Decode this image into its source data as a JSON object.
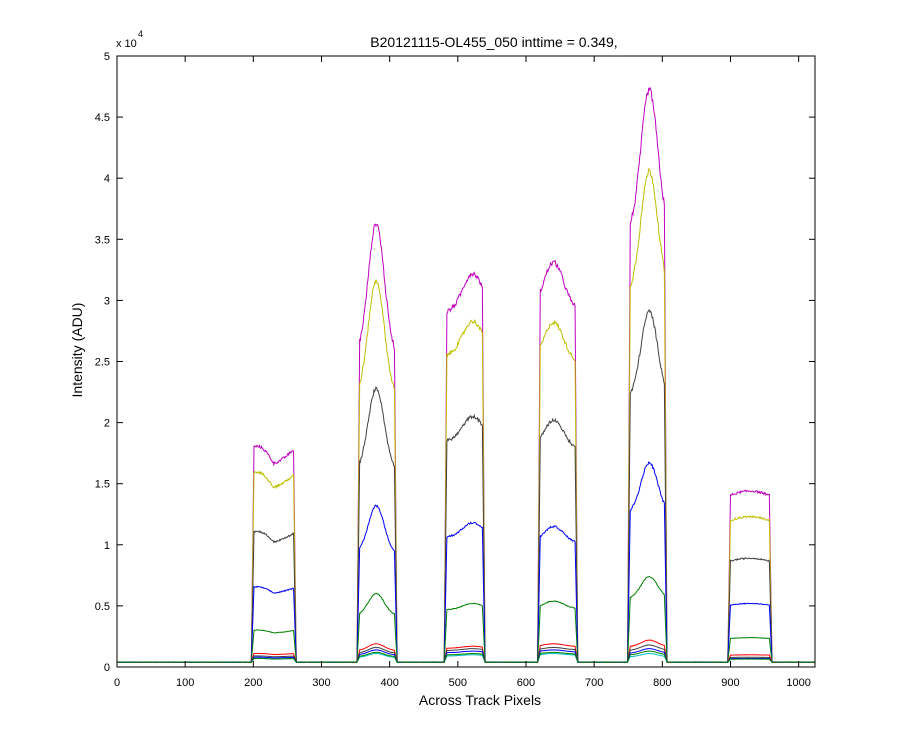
{
  "chart_data": {
    "type": "line",
    "title": "B20121115-OL455_050 inttime = 0.349,",
    "xlabel": "Across Track Pixels",
    "ylabel": "Intensity (ADU)",
    "y_exponent_prefix": "x 10",
    "y_exponent": "4",
    "xlim": [
      0,
      1024
    ],
    "ylim": [
      0,
      50000
    ],
    "x_ticks": [
      0,
      100,
      200,
      300,
      400,
      500,
      600,
      700,
      800,
      900,
      1000
    ],
    "y_ticks": [
      0,
      5000,
      10000,
      15000,
      20000,
      25000,
      30000,
      35000,
      40000,
      45000,
      50000
    ],
    "x_tick_labels": [
      "0",
      "100",
      "200",
      "300",
      "400",
      "500",
      "600",
      "700",
      "800",
      "900",
      "1000"
    ],
    "y_tick_labels": [
      "0",
      "0.5",
      "1",
      "1.5",
      "2",
      "2.5",
      "3",
      "3.5",
      "4",
      "4.5",
      "5"
    ],
    "grid": false,
    "baseline": 400,
    "bands": [
      {
        "start": 197,
        "end": 263
      },
      {
        "start": 352,
        "end": 411
      },
      {
        "start": 480,
        "end": 540
      },
      {
        "start": 617,
        "end": 676
      },
      {
        "start": 749,
        "end": 807
      },
      {
        "start": 896,
        "end": 961
      }
    ],
    "series": [
      {
        "color": "#00bfbf",
        "peaks": [
          700,
          1100,
          1000,
          1100,
          1100,
          700
        ]
      },
      {
        "color": "#bf00bf",
        "peaks": [
          17900,
          36300,
          32200,
          33100,
          47200,
          14400
        ]
      },
      {
        "color": "#bfbf00",
        "peaks": [
          15800,
          31600,
          28300,
          28200,
          40600,
          12300
        ]
      },
      {
        "color": "#404040",
        "peaks": [
          11000,
          22800,
          20500,
          20200,
          29100,
          8900
        ]
      },
      {
        "color": "#0000ff",
        "peaks": [
          6500,
          13200,
          11800,
          11500,
          16700,
          5200
        ]
      },
      {
        "color": "#008000",
        "peaks": [
          3000,
          6000,
          5200,
          5400,
          7400,
          2400
        ]
      },
      {
        "color": "#ff0000",
        "peaks": [
          1100,
          1900,
          1700,
          1900,
          2200,
          1000
        ]
      },
      {
        "color": "#404040",
        "peaks": [
          900,
          1600,
          1500,
          1600,
          1800,
          800
        ]
      },
      {
        "color": "#0000ff",
        "peaks": [
          800,
          1400,
          1300,
          1400,
          1500,
          700
        ]
      },
      {
        "color": "#008000",
        "peaks": [
          700,
          1200,
          1100,
          1200,
          1300,
          650
        ]
      }
    ]
  }
}
